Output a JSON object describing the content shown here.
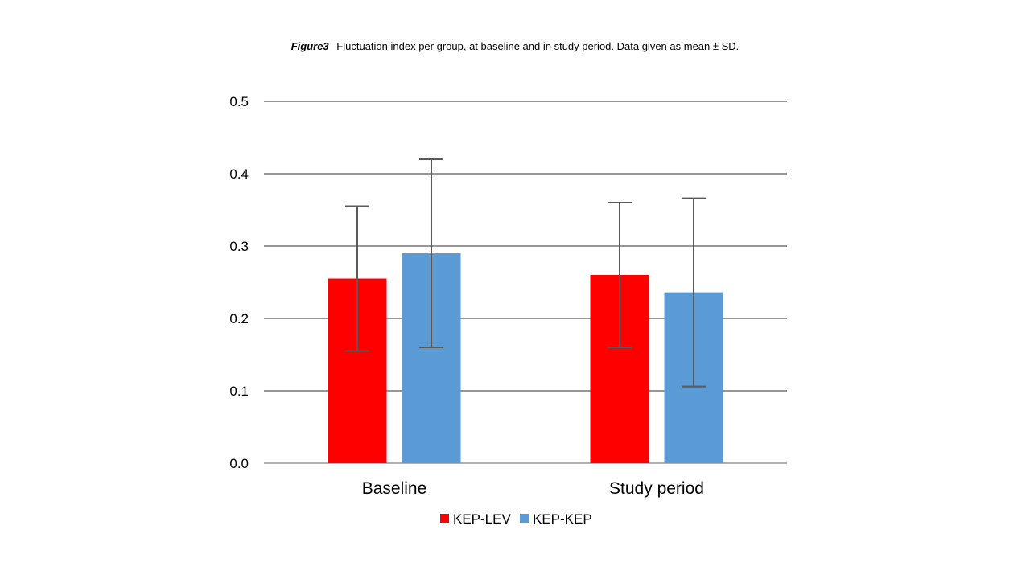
{
  "caption": {
    "label": "Figure3",
    "text": "Fluctuation index per group, at baseline and in study period. Data given as mean ± SD."
  },
  "chart_data": {
    "type": "bar",
    "categories": [
      "Baseline",
      "Study period"
    ],
    "series": [
      {
        "name": "KEP-LEV",
        "color": "#ff0000",
        "values": [
          0.255,
          0.26
        ],
        "error": [
          0.1,
          0.1
        ]
      },
      {
        "name": "KEP-KEP",
        "color": "#5b9bd5",
        "values": [
          0.29,
          0.236
        ],
        "error": [
          0.13,
          0.13
        ]
      }
    ],
    "yticks": [
      "0.0",
      "0.1",
      "0.2",
      "0.3",
      "0.4",
      "0.5"
    ],
    "ylim": [
      0,
      0.5
    ],
    "grid": true,
    "legend_position": "bottom",
    "title": "",
    "xlabel": "",
    "ylabel": ""
  }
}
